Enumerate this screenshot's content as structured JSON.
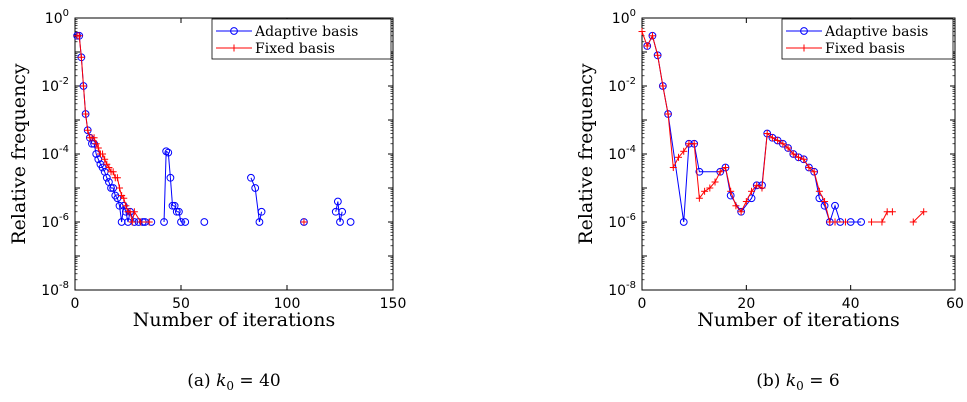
{
  "chart_data": [
    {
      "type": "line",
      "title": "",
      "caption_prefix": "(a)",
      "caption_k": "k",
      "caption_sub": "0",
      "caption_rest": " = 40",
      "xlabel": "Number of iterations",
      "ylabel": "Relative frequency",
      "xlim": [
        0,
        150
      ],
      "ylim_exp": [
        -8,
        0
      ],
      "y_scale": "log",
      "x_ticks": [
        0,
        50,
        100,
        150
      ],
      "y_ticks": [
        {
          "base": "10",
          "exp": "0",
          "value": 0
        },
        {
          "base": "10",
          "exp": "-2",
          "value": -2
        },
        {
          "base": "10",
          "exp": "-4",
          "value": -4
        },
        {
          "base": "10",
          "exp": "-6",
          "value": -6
        },
        {
          "base": "10",
          "exp": "-8",
          "value": -8
        }
      ],
      "legend_position": "top-right",
      "series": [
        {
          "name": "Adaptive basis",
          "color": "#0000ff",
          "marker": "circle",
          "points": [
            [
              1,
              0.3
            ],
            [
              2,
              0.3
            ],
            [
              3,
              0.07
            ],
            [
              4,
              0.01
            ],
            [
              5,
              0.0015
            ],
            [
              6,
              0.0005
            ],
            [
              7,
              0.0003
            ],
            [
              8,
              0.0002
            ],
            [
              9,
              0.0002
            ],
            [
              10,
              0.0001
            ],
            [
              11,
              7e-05
            ],
            [
              12,
              5e-05
            ],
            [
              13,
              4e-05
            ],
            [
              14,
              3e-05
            ],
            [
              15,
              2e-05
            ],
            [
              16,
              1.5e-05
            ],
            [
              17,
              1e-05
            ],
            [
              18,
              1e-05
            ],
            [
              19,
              6e-06
            ],
            [
              20,
              5e-06
            ],
            [
              21,
              3e-06
            ],
            [
              22,
              1e-06
            ],
            [
              23,
              3e-06
            ],
            [
              24,
              2e-06
            ],
            [
              25,
              1e-06
            ],
            [
              26,
              2e-06
            ],
            [
              28,
              1e-06
            ],
            [
              30,
              1e-06
            ],
            [
              32,
              1e-06
            ],
            [
              33,
              1e-06
            ],
            [
              36,
              1e-06
            ]
          ],
          "extra_points": [
            [
              42,
              1e-06
            ],
            [
              43,
              0.00012
            ],
            [
              44,
              0.00011
            ],
            [
              45,
              2e-05
            ],
            [
              46,
              3e-06
            ],
            [
              47,
              3e-06
            ],
            [
              48,
              2e-06
            ],
            [
              49,
              2e-06
            ],
            [
              50,
              1e-06
            ],
            [
              52,
              1e-06
            ],
            [
              61,
              1e-06
            ],
            [
              83,
              2e-05
            ],
            [
              85,
              1e-05
            ],
            [
              87,
              1e-06
            ],
            [
              88,
              2e-06
            ],
            [
              108,
              1e-06
            ],
            [
              123,
              2e-06
            ],
            [
              124,
              4e-06
            ],
            [
              125,
              1e-06
            ],
            [
              126,
              2e-06
            ],
            [
              130,
              1e-06
            ]
          ]
        },
        {
          "name": "Fixed basis",
          "color": "#ff0000",
          "marker": "plus",
          "points": [
            [
              1,
              0.3
            ],
            [
              2,
              0.3
            ],
            [
              3,
              0.07
            ],
            [
              4,
              0.01
            ],
            [
              5,
              0.0015
            ],
            [
              6,
              0.0005
            ],
            [
              7,
              0.0003
            ],
            [
              8,
              0.0003
            ],
            [
              9,
              0.0003
            ],
            [
              10,
              0.0002
            ],
            [
              11,
              0.00015
            ],
            [
              12,
              0.0001
            ],
            [
              13,
              0.0001
            ],
            [
              14,
              7e-05
            ],
            [
              15,
              5e-05
            ],
            [
              16,
              4e-05
            ],
            [
              17,
              3e-05
            ],
            [
              18,
              3e-05
            ],
            [
              19,
              2e-05
            ],
            [
              20,
              2e-05
            ],
            [
              21,
              1e-05
            ],
            [
              22,
              6e-06
            ],
            [
              23,
              5e-06
            ],
            [
              24,
              3e-06
            ],
            [
              25,
              2e-06
            ],
            [
              26,
              2e-06
            ],
            [
              27,
              1e-06
            ],
            [
              28,
              2e-06
            ],
            [
              31,
              1e-06
            ],
            [
              35,
              1e-06
            ]
          ],
          "extra_points": [
            [
              108,
              1e-06
            ]
          ]
        }
      ]
    },
    {
      "type": "line",
      "title": "",
      "caption_prefix": "(b)",
      "caption_k": "k",
      "caption_sub": "0",
      "caption_rest": " = 6",
      "xlabel": "Number of iterations",
      "ylabel": "Relative frequency",
      "xlim": [
        0,
        60
      ],
      "ylim_exp": [
        -8,
        0
      ],
      "y_scale": "log",
      "x_ticks": [
        0,
        20,
        40,
        60
      ],
      "y_ticks": [
        {
          "base": "10",
          "exp": "0",
          "value": 0
        },
        {
          "base": "10",
          "exp": "-2",
          "value": -2
        },
        {
          "base": "10",
          "exp": "-4",
          "value": -4
        },
        {
          "base": "10",
          "exp": "-6",
          "value": -6
        },
        {
          "base": "10",
          "exp": "-8",
          "value": -8
        }
      ],
      "legend_position": "top-right",
      "series": [
        {
          "name": "Adaptive basis",
          "color": "#0000ff",
          "marker": "circle",
          "points": [
            [
              1,
              0.15
            ],
            [
              2,
              0.3
            ],
            [
              3,
              0.08
            ],
            [
              4,
              0.01
            ],
            [
              5,
              0.0015
            ],
            [
              8,
              1e-06
            ],
            [
              9,
              0.0002
            ],
            [
              10,
              0.0002
            ],
            [
              11,
              3e-05
            ],
            [
              15,
              3e-05
            ],
            [
              16,
              4e-05
            ],
            [
              17,
              6e-06
            ],
            [
              19,
              2e-06
            ],
            [
              21,
              5e-06
            ],
            [
              22,
              1.2e-05
            ],
            [
              23,
              1.2e-05
            ],
            [
              24,
              0.0004
            ],
            [
              25,
              0.0003
            ],
            [
              26,
              0.00025
            ],
            [
              27,
              0.0002
            ],
            [
              28,
              0.00015
            ],
            [
              29,
              0.0001
            ],
            [
              30,
              8e-05
            ],
            [
              31,
              7e-05
            ],
            [
              32,
              4e-05
            ],
            [
              33,
              3e-05
            ],
            [
              34,
              5e-06
            ],
            [
              35,
              3e-06
            ],
            [
              36,
              1e-06
            ],
            [
              37,
              3e-06
            ],
            [
              38,
              1e-06
            ],
            [
              40,
              1e-06
            ],
            [
              42,
              1e-06
            ]
          ],
          "extra_points": []
        },
        {
          "name": "Fixed basis",
          "color": "#ff0000",
          "marker": "plus",
          "points": [
            [
              0,
              0.4
            ],
            [
              1,
              0.15
            ],
            [
              2,
              0.3
            ],
            [
              3,
              0.08
            ],
            [
              4,
              0.01
            ],
            [
              5,
              0.0015
            ],
            [
              6,
              4e-05
            ],
            [
              7,
              8e-05
            ],
            [
              8,
              0.00012
            ],
            [
              9,
              0.0002
            ],
            [
              10,
              0.0002
            ],
            [
              11,
              5e-06
            ],
            [
              12,
              8e-06
            ],
            [
              13,
              1e-05
            ],
            [
              14,
              1.5e-05
            ],
            [
              15,
              3e-05
            ],
            [
              16,
              4e-05
            ],
            [
              17,
              8e-06
            ],
            [
              18,
              3e-06
            ],
            [
              19,
              2e-06
            ],
            [
              20,
              4e-06
            ],
            [
              21,
              8e-06
            ],
            [
              22,
              1.2e-05
            ],
            [
              23,
              1e-05
            ],
            [
              24,
              0.0004
            ],
            [
              25,
              0.0003
            ],
            [
              26,
              0.00025
            ],
            [
              27,
              0.0002
            ],
            [
              28,
              0.00015
            ],
            [
              29,
              0.0001
            ],
            [
              30,
              8e-05
            ],
            [
              31,
              7e-05
            ],
            [
              32,
              4e-05
            ],
            [
              33,
              3e-05
            ],
            [
              34,
              8e-06
            ],
            [
              35,
              4e-06
            ],
            [
              36,
              1e-06
            ],
            [
              37,
              1e-06
            ],
            [
              39,
              1e-06
            ]
          ],
          "extra_points": [
            [
              44,
              1e-06
            ],
            [
              46,
              1e-06
            ],
            [
              47,
              2e-06
            ],
            [
              48,
              2e-06
            ],
            [
              52,
              1e-06
            ],
            [
              54,
              2e-06
            ]
          ]
        }
      ]
    }
  ]
}
